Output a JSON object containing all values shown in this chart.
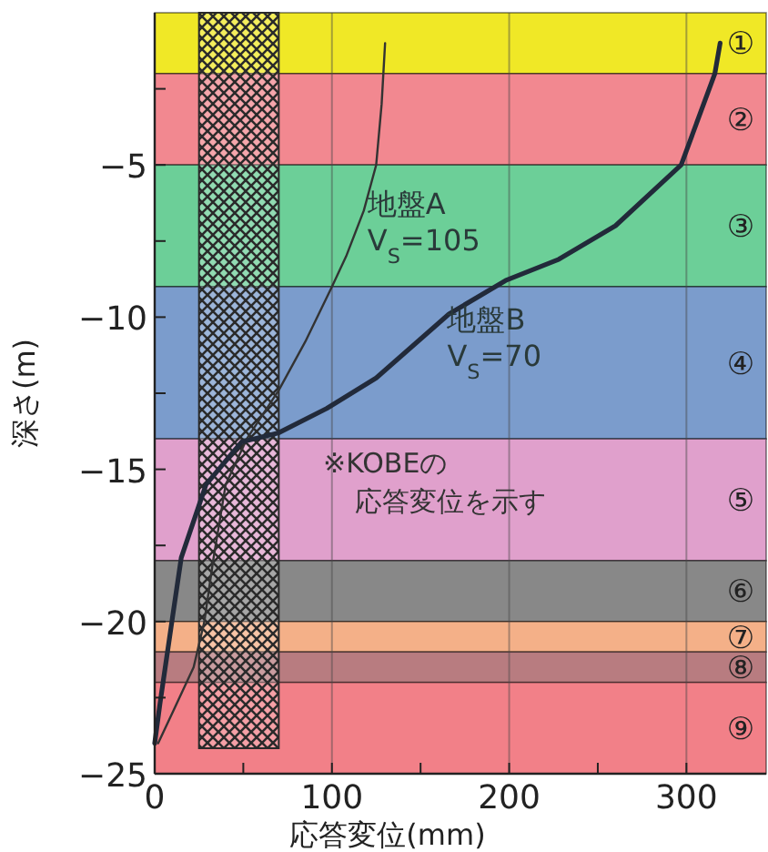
{
  "chart_data": {
    "type": "line",
    "xlabel": "応答変位(mm)",
    "ylabel": "深さ(m)",
    "xlim": [
      0,
      345
    ],
    "ylim": [
      -25,
      0
    ],
    "xticks": [
      0,
      {
        "value": 50,
        "label": null
      },
      100,
      {
        "value": 150,
        "label": null
      },
      200,
      {
        "value": 250,
        "label": null
      },
      300
    ],
    "yticks": [
      {
        "value": -2.5,
        "label": null
      },
      -5,
      {
        "value": -7.5,
        "label": null
      },
      -10,
      {
        "value": -12.5,
        "label": null
      },
      -15,
      {
        "value": -17.5,
        "label": null
      },
      -20,
      {
        "value": -22.5,
        "label": null
      },
      -25
    ],
    "grid": "x",
    "series": [
      {
        "name": "地盤A\nV$_{S}$=105",
        "color": "#333333",
        "x": [
          130,
          128,
          125,
          118,
          108,
          100,
          85,
          70,
          52,
          40,
          33,
          28,
          22,
          10,
          2
        ],
        "values": [
          -1,
          -3,
          -5,
          -6.5,
          -8,
          -9,
          -10.8,
          -12.4,
          -14,
          -15.5,
          -18,
          -20,
          -21.5,
          -23,
          -24
        ]
      },
      {
        "name": "地盤B\nV$_{S}$=70",
        "color": "#222a3a",
        "x": [
          319,
          316,
          297,
          260,
          228,
          198,
          166,
          125,
          97,
          70,
          49,
          29,
          15,
          10,
          3,
          0
        ],
        "values": [
          -1,
          -2,
          -5,
          -7,
          -8.1,
          -8.8,
          -9.9,
          -12,
          -13,
          -13.8,
          -14.1,
          -15.5,
          -17.9,
          -19.9,
          -22.7,
          -24
        ]
      }
    ],
    "bands": [
      {
        "axis": "y",
        "from": -2,
        "to": 0,
        "label": "①",
        "color": "#f0e826"
      },
      {
        "axis": "y",
        "from": -5,
        "to": -2,
        "label": "②",
        "color": "#f28890"
      },
      {
        "axis": "y",
        "from": -9,
        "to": -5,
        "label": "③",
        "color": "#6ccf98"
      },
      {
        "axis": "y",
        "from": -14,
        "to": -9,
        "label": "④",
        "color": "#7b9ccc"
      },
      {
        "axis": "y",
        "from": -18,
        "to": -14,
        "label": "⑤",
        "color": "#e0a0cc"
      },
      {
        "axis": "y",
        "from": -20,
        "to": -18,
        "label": "⑥",
        "color": "#888888"
      },
      {
        "axis": "y",
        "from": -21,
        "to": -20,
        "label": "⑦",
        "color": "#f4b088"
      },
      {
        "axis": "y",
        "from": -22,
        "to": -21,
        "label": "⑧",
        "color": "#b87c80"
      },
      {
        "axis": "y",
        "from": -25,
        "to": -22,
        "label": "⑨",
        "color": "#f28088"
      },
      {
        "axis": "x",
        "from": 25,
        "to": 70,
        "color": "#2a2a2a"
      }
    ],
    "annotations": [
      "※KOBEの",
      "応答変位を示す"
    ]
  }
}
